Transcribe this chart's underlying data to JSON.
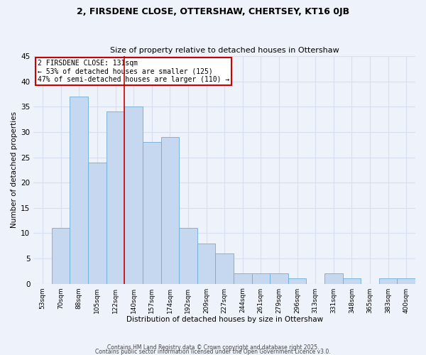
{
  "title1": "2, FIRSDENE CLOSE, OTTERSHAW, CHERTSEY, KT16 0JB",
  "title2": "Size of property relative to detached houses in Ottershaw",
  "xlabel": "Distribution of detached houses by size in Ottershaw",
  "ylabel": "Number of detached properties",
  "bin_labels": [
    "53sqm",
    "70sqm",
    "88sqm",
    "105sqm",
    "122sqm",
    "140sqm",
    "157sqm",
    "174sqm",
    "192sqm",
    "209sqm",
    "227sqm",
    "244sqm",
    "261sqm",
    "279sqm",
    "296sqm",
    "313sqm",
    "331sqm",
    "348sqm",
    "365sqm",
    "383sqm",
    "400sqm"
  ],
  "bin_values": [
    0,
    11,
    37,
    24,
    34,
    35,
    28,
    29,
    11,
    8,
    6,
    2,
    2,
    2,
    1,
    0,
    2,
    1,
    0,
    1,
    1
  ],
  "bar_color": "#c5d8f0",
  "bar_edge_color": "#6baed6",
  "vline_index": 5,
  "annotation_title": "2 FIRSDENE CLOSE: 131sqm",
  "annotation_line1": "← 53% of detached houses are smaller (125)",
  "annotation_line2": "47% of semi-detached houses are larger (110) →",
  "annotation_box_color": "#ffffff",
  "annotation_box_edge": "#cc0000",
  "vline_color": "#cc0000",
  "bg_color": "#eef2fa",
  "grid_color": "#d8e0f0",
  "ylim": [
    0,
    45
  ],
  "yticks": [
    0,
    5,
    10,
    15,
    20,
    25,
    30,
    35,
    40,
    45
  ],
  "footer1": "Contains HM Land Registry data © Crown copyright and database right 2025.",
  "footer2": "Contains public sector information licensed under the Open Government Licence v3.0."
}
